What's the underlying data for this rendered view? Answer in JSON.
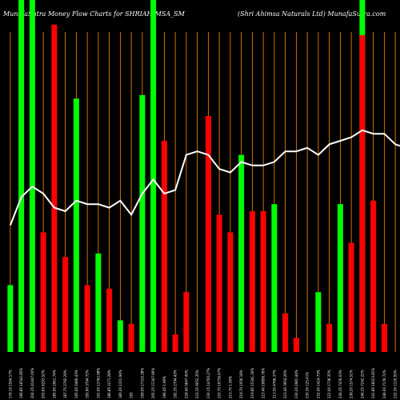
{
  "header": {
    "left": "MunafaSutra  Money Flow  Charts for SHRIAHIMSA_SM",
    "right": "(Shri  Ahimsa  Naturals Ltd) MunafaSutra.com"
  },
  "colors": {
    "background": "#000000",
    "up": "#00ff00",
    "down": "#ff0000",
    "divider": "#ff8c00",
    "line": "#ffffff",
    "text": "#ffffff"
  },
  "chart_data": {
    "type": "bar",
    "title": "MunafaSutra  Money Flow  Charts for SHRIAHIMSA_SM",
    "subtitle": "(Shri  Ahimsa  Naturals Ltd) MunafaSutra.com",
    "categories": [
      "176.15 1594.17%",
      "196.85 16542.85%",
      "204.35 41447.00%",
      "205.65 6293.52%",
      "185.95 2961.74%",
      "187.75 2792.29%",
      "195.00 5466.43%",
      "195.90 3794.72%",
      "191.00 13762.98%",
      "186.85 2271.28%",
      "180.20 1101.94%",
      "195",
      "199.00 17310.38%",
      "205.25 11347.90%",
      "196.45 1.90%",
      "192.35 2794.43%",
      "228.40 5647.45%",
      "233.35 9052.35%",
      "230.15 14700.27%",
      "220.70 19736.67%",
      "215.70 1.95%",
      "218.70 1056.18%",
      "219.85 15341.30%",
      "223.40 19856.76%",
      "213.50 4766.37%",
      "223.40 3954.26%",
      "230.20 2981.44%",
      "230.30 125.41%",
      "232.45 1424.73%",
      "222.00 1736.35%",
      "236.35 7476.03%",
      "238.20 1574.51%",
      "246.25 7242.22%",
      "241.85 16023.81%",
      "246.00 7176.72%",
      "232.30 1120.55%",
      "236.75 7276.72%",
      "240.05 1239.68%"
    ],
    "series": [
      {
        "color": "#00ff00",
        "type": "bar",
        "values": [
          19,
          100,
          100,
          0,
          0,
          0,
          72,
          0,
          28,
          0,
          9,
          0,
          73,
          100,
          0,
          0,
          0,
          0,
          0,
          0,
          0,
          56,
          0,
          0,
          42,
          0,
          0,
          0,
          17,
          0,
          42,
          0,
          100,
          0,
          0,
          0,
          0,
          59
        ]
      },
      {
        "color": "#ff0000",
        "type": "bar",
        "values": [
          0,
          0,
          0,
          34,
          93,
          27,
          0,
          19,
          0,
          18,
          0,
          8,
          0,
          0,
          60,
          5,
          17,
          0,
          67,
          39,
          34,
          0,
          40,
          40,
          0,
          11,
          4,
          0,
          0,
          8,
          0,
          31,
          90,
          43,
          8,
          0,
          70,
          0
        ]
      },
      {
        "type": "line",
        "color": "#ffffff",
        "values": [
          36,
          44,
          47,
          45,
          41,
          40,
          43,
          42,
          42,
          41,
          43,
          39,
          45,
          49,
          45,
          46,
          56,
          57,
          56,
          52,
          51,
          54,
          53,
          53,
          54,
          57,
          57,
          58,
          56,
          59,
          60,
          61,
          63,
          62,
          62,
          59,
          58,
          62
        ]
      }
    ],
    "ylim": [
      0,
      100
    ],
    "grid": true
  }
}
